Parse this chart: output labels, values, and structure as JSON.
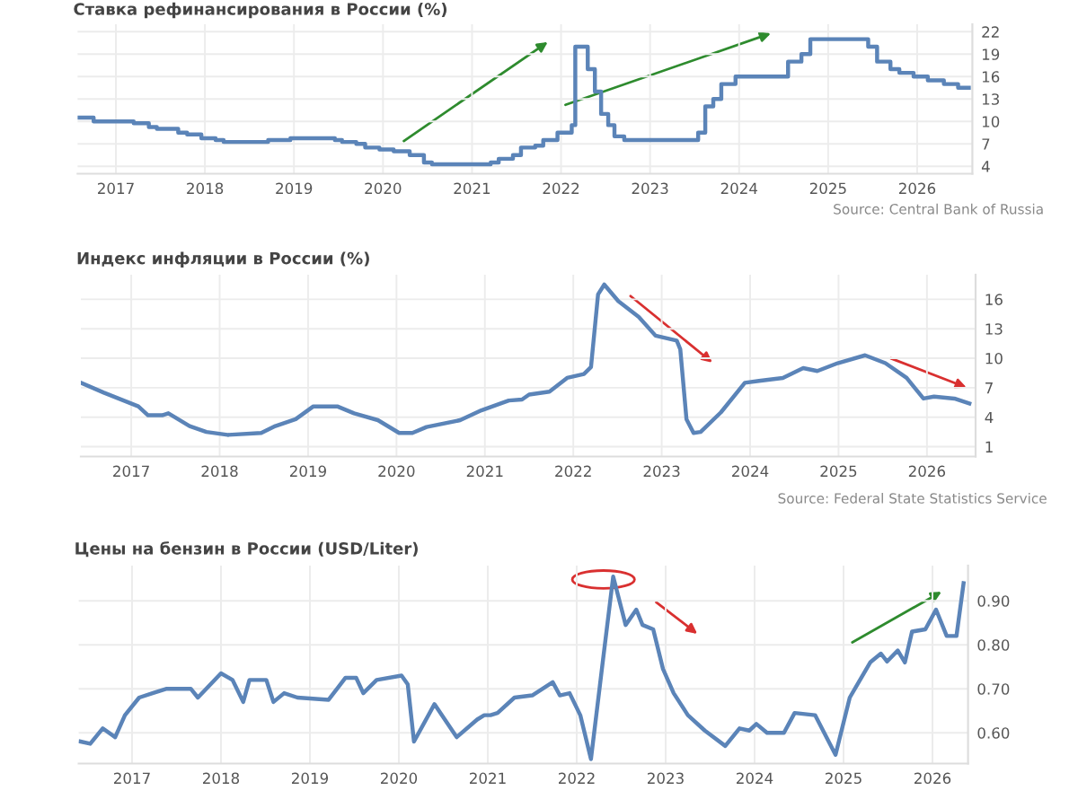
{
  "chart_data": [
    {
      "type": "step",
      "title": "Ставка рефинансирования в России (%)",
      "color": "#5b84b8",
      "x": [
        2016.57,
        2016.75,
        2017.2,
        2017.37,
        2017.46,
        2017.7,
        2017.8,
        2017.96,
        2018.12,
        2018.21,
        2018.71,
        2018.96,
        2019.46,
        2019.54,
        2019.7,
        2019.8,
        2019.96,
        2020.12,
        2020.3,
        2020.46,
        2020.55,
        2021.21,
        2021.3,
        2021.46,
        2021.55,
        2021.71,
        2021.8,
        2021.96,
        2022.12,
        2022.16,
        2022.3,
        2022.38,
        2022.45,
        2022.53,
        2022.6,
        2022.71,
        2023.54,
        2023.62,
        2023.71,
        2023.8,
        2023.96,
        2024.55,
        2024.7,
        2024.8,
        2025.45,
        2025.55,
        2025.7,
        2025.8,
        2025.96,
        2026.12,
        2026.3,
        2026.46,
        2026.58
      ],
      "values": [
        10.5,
        10,
        9.75,
        9.25,
        9,
        8.5,
        8.25,
        7.75,
        7.5,
        7.25,
        7.5,
        7.75,
        7.5,
        7.25,
        7,
        6.5,
        6.25,
        6,
        5.5,
        4.5,
        4.25,
        4.5,
        5,
        5.5,
        6.5,
        6.75,
        7.5,
        8.5,
        9.5,
        20,
        17,
        14,
        11,
        9.5,
        8,
        7.5,
        8.5,
        12,
        13,
        15,
        16,
        18,
        19,
        21,
        20,
        18,
        17,
        16.5,
        16,
        15.5,
        15,
        14.5,
        14.5
      ],
      "xlim": [
        2016.57,
        2026.62
      ],
      "xticks": [
        2017,
        2018,
        2019,
        2020,
        2021,
        2022,
        2023,
        2024,
        2025,
        2026
      ],
      "ylim": [
        3,
        23
      ],
      "yticks": [
        4,
        7,
        10,
        13,
        16,
        19,
        22
      ],
      "grid": true,
      "annotations": [
        "Source: Central Bank of Russia"
      ]
    },
    {
      "type": "line",
      "title": "Индекс инфляции в России (%)",
      "color": "#5b84b8",
      "x": [
        2016.43,
        2016.69,
        2017.08,
        2017.19,
        2017.35,
        2017.42,
        2017.66,
        2017.85,
        2018.09,
        2018.47,
        2018.63,
        2018.86,
        2019.06,
        2019.33,
        2019.52,
        2019.79,
        2020.03,
        2020.18,
        2020.34,
        2020.72,
        2020.96,
        2021.27,
        2021.42,
        2021.5,
        2021.73,
        2021.93,
        2022.12,
        2022.2,
        2022.28,
        2022.35,
        2022.51,
        2022.74,
        2022.93,
        2023.17,
        2023.21,
        2023.28,
        2023.36,
        2023.44,
        2023.67,
        2023.94,
        2024.1,
        2024.37,
        2024.6,
        2024.76,
        2024.99,
        2025.3,
        2025.53,
        2025.77,
        2025.96,
        2026.08,
        2026.31,
        2026.48
      ],
      "values": [
        7.5,
        6.5,
        5.1,
        4.2,
        4.2,
        4.4,
        3.1,
        2.5,
        2.2,
        2.4,
        3.1,
        3.8,
        5.1,
        5.1,
        4.4,
        3.7,
        2.4,
        2.4,
        3.0,
        3.7,
        4.7,
        5.7,
        5.8,
        6.3,
        6.6,
        8.0,
        8.4,
        9.1,
        16.5,
        17.5,
        15.8,
        14.2,
        12.3,
        11.8,
        10.9,
        3.8,
        2.4,
        2.5,
        4.5,
        7.5,
        7.7,
        8.0,
        9.0,
        8.7,
        9.5,
        10.3,
        9.5,
        8.0,
        5.9,
        6.1,
        5.9,
        5.4
      ],
      "xlim": [
        2016.43,
        2026.55
      ],
      "xticks": [
        2017,
        2018,
        2019,
        2020,
        2021,
        2022,
        2023,
        2024,
        2025,
        2026
      ],
      "ylim": [
        0,
        18.5
      ],
      "yticks": [
        1,
        4,
        7,
        10,
        13,
        16
      ],
      "grid": true,
      "annotations": [
        "Source: Federal State Statistics Service"
      ]
    },
    {
      "type": "line",
      "title": "Цены на бензин в России (USD/Liter)",
      "color": "#5b84b8",
      "x": [
        2016.42,
        2016.53,
        2016.67,
        2016.81,
        2016.92,
        2017.08,
        2017.23,
        2017.39,
        2017.66,
        2017.74,
        2018.0,
        2018.13,
        2018.25,
        2018.32,
        2018.51,
        2018.59,
        2018.71,
        2018.86,
        2019.21,
        2019.4,
        2019.52,
        2019.6,
        2019.75,
        2020.03,
        2020.1,
        2020.17,
        2020.4,
        2020.65,
        2020.88,
        2020.96,
        2021.03,
        2021.11,
        2021.3,
        2021.5,
        2021.73,
        2021.81,
        2021.92,
        2022.04,
        2022.16,
        2022.28,
        2022.41,
        2022.55,
        2022.67,
        2022.74,
        2022.86,
        2022.97,
        2023.09,
        2023.25,
        2023.44,
        2023.67,
        2023.83,
        2023.94,
        2024.02,
        2024.14,
        2024.33,
        2024.45,
        2024.68,
        2024.91,
        2025.07,
        2025.3,
        2025.42,
        2025.49,
        2025.61,
        2025.69,
        2025.77,
        2025.92,
        2026.04,
        2026.16,
        2026.27,
        2026.35
      ],
      "values": [
        0.58,
        0.575,
        0.61,
        0.59,
        0.64,
        0.68,
        0.69,
        0.7,
        0.7,
        0.68,
        0.735,
        0.72,
        0.67,
        0.72,
        0.72,
        0.67,
        0.69,
        0.68,
        0.675,
        0.725,
        0.725,
        0.69,
        0.72,
        0.73,
        0.71,
        0.58,
        0.665,
        0.59,
        0.63,
        0.64,
        0.64,
        0.645,
        0.68,
        0.685,
        0.715,
        0.685,
        0.69,
        0.64,
        0.54,
        0.74,
        0.955,
        0.845,
        0.88,
        0.845,
        0.835,
        0.745,
        0.69,
        0.64,
        0.605,
        0.57,
        0.61,
        0.605,
        0.62,
        0.6,
        0.6,
        0.645,
        0.64,
        0.55,
        0.68,
        0.76,
        0.78,
        0.762,
        0.787,
        0.76,
        0.83,
        0.835,
        0.88,
        0.82,
        0.82,
        0.94
      ],
      "xlim": [
        2016.4,
        2026.4
      ],
      "xticks": [
        2017,
        2018,
        2019,
        2020,
        2021,
        2022,
        2023,
        2024,
        2025,
        2026
      ],
      "ylim": [
        0.53,
        0.98
      ],
      "yticks": [
        {
          "value": 0.6,
          "label": "0.60"
        },
        {
          "value": 0.7,
          "label": "0.70"
        },
        {
          "value": 0.8,
          "label": "0.80"
        },
        {
          "value": 0.9,
          "label": "0.90"
        }
      ],
      "grid": true
    }
  ]
}
